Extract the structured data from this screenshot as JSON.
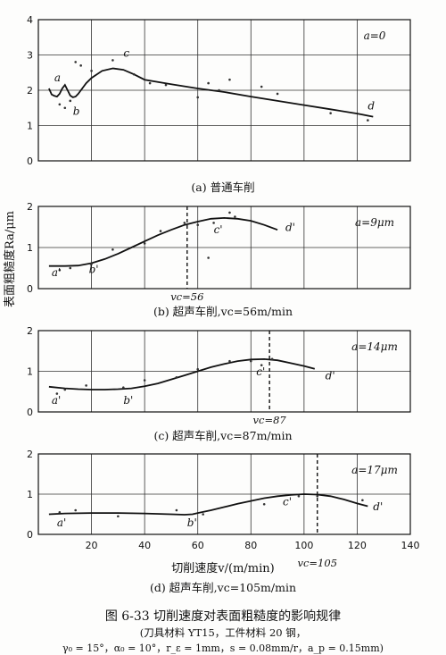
{
  "figure": {
    "caption": "图 6-33  切削速度对表面粗糙度的影响规律",
    "note": "(刀具材料 YT15，工件材料 20 钢，",
    "params": "γ₀ = 15°，α₀ = 10°，r_ε = 1mm，s = 0.08mm/r，a_p = 0.15mm)",
    "ylabel": "表面粗糙度Ra/μm",
    "xlabel": "切削速度v/(m/min)"
  },
  "chart_data": [
    {
      "type": "line",
      "title": "(a) 普通车削",
      "amplitude_label": "a=0",
      "ylim": [
        0,
        4
      ],
      "yticks": [
        "0",
        "1",
        "2",
        "3",
        "4"
      ],
      "xlim": [
        0,
        140
      ],
      "grid": true,
      "series": [
        {
          "x": [
            4,
            5,
            6,
            7,
            8,
            9,
            10,
            11,
            12,
            13,
            14,
            15,
            16,
            18,
            20,
            24,
            28,
            32,
            36,
            40,
            50,
            60,
            70,
            80,
            90,
            100,
            110,
            120,
            126
          ],
          "y": [
            2.05,
            1.88,
            1.84,
            1.82,
            1.9,
            2.05,
            2.15,
            2.0,
            1.85,
            1.8,
            1.82,
            1.9,
            2.0,
            2.2,
            2.35,
            2.55,
            2.62,
            2.58,
            2.45,
            2.3,
            2.17,
            2.05,
            1.95,
            1.82,
            1.7,
            1.58,
            1.46,
            1.34,
            1.25
          ]
        }
      ],
      "points": [
        {
          "x": 8,
          "y": 1.6
        },
        {
          "x": 10,
          "y": 1.5
        },
        {
          "x": 12,
          "y": 1.7
        },
        {
          "x": 14,
          "y": 2.8
        },
        {
          "x": 16,
          "y": 2.7
        },
        {
          "x": 20,
          "y": 2.55
        },
        {
          "x": 28,
          "y": 2.85
        },
        {
          "x": 36,
          "y": 2.45
        },
        {
          "x": 42,
          "y": 2.2
        },
        {
          "x": 48,
          "y": 2.15
        },
        {
          "x": 60,
          "y": 1.8
        },
        {
          "x": 64,
          "y": 2.2
        },
        {
          "x": 68,
          "y": 2.0
        },
        {
          "x": 72,
          "y": 2.3
        },
        {
          "x": 84,
          "y": 2.1
        },
        {
          "x": 90,
          "y": 1.9
        },
        {
          "x": 110,
          "y": 1.35
        },
        {
          "x": 124,
          "y": 1.15
        }
      ],
      "curve_labels": [
        {
          "text": "a",
          "x": 6,
          "y": 2.25
        },
        {
          "text": "b",
          "x": 13,
          "y": 1.3
        },
        {
          "text": "c",
          "x": 32,
          "y": 2.95
        },
        {
          "text": "d",
          "x": 124,
          "y": 1.45
        }
      ]
    },
    {
      "type": "line",
      "title": "(b) 超声车削,vc=56m/min",
      "amplitude_label": "a=9μm",
      "vc_label": "vc=56",
      "vc": 56,
      "ylim": [
        0,
        2
      ],
      "yticks": [
        "0",
        "1",
        "2"
      ],
      "xlim": [
        0,
        140
      ],
      "grid": true,
      "series": [
        {
          "x": [
            4,
            10,
            15,
            20,
            25,
            30,
            35,
            40,
            45,
            50,
            55,
            60,
            65,
            70,
            75,
            80,
            85,
            90
          ],
          "y": [
            0.55,
            0.55,
            0.56,
            0.62,
            0.72,
            0.85,
            1.0,
            1.15,
            1.3,
            1.43,
            1.55,
            1.63,
            1.7,
            1.72,
            1.7,
            1.65,
            1.55,
            1.43
          ]
        }
      ],
      "points": [
        {
          "x": 8,
          "y": 0.45
        },
        {
          "x": 12,
          "y": 0.5
        },
        {
          "x": 20,
          "y": 0.6
        },
        {
          "x": 28,
          "y": 0.95
        },
        {
          "x": 40,
          "y": 1.1
        },
        {
          "x": 46,
          "y": 1.4
        },
        {
          "x": 55,
          "y": 1.6
        },
        {
          "x": 60,
          "y": 1.55
        },
        {
          "x": 64,
          "y": 0.75
        },
        {
          "x": 66,
          "y": 1.6
        },
        {
          "x": 72,
          "y": 1.85
        },
        {
          "x": 74,
          "y": 1.75
        }
      ],
      "curve_labels": [
        {
          "text": "a'",
          "x": 5,
          "y": 0.3
        },
        {
          "text": "b'",
          "x": 19,
          "y": 0.38
        },
        {
          "text": "c'",
          "x": 66,
          "y": 1.35
        },
        {
          "text": "d'",
          "x": 93,
          "y": 1.4
        }
      ]
    },
    {
      "type": "line",
      "title": "(c) 超声车削,vc=87m/min",
      "amplitude_label": "a=14μm",
      "vc_label": "vc=87",
      "vc": 87,
      "ylim": [
        0,
        2
      ],
      "yticks": [
        "0",
        "1",
        "2"
      ],
      "xlim": [
        0,
        140
      ],
      "grid": true,
      "series": [
        {
          "x": [
            4,
            10,
            15,
            20,
            25,
            30,
            35,
            40,
            45,
            50,
            55,
            60,
            65,
            70,
            75,
            80,
            85,
            90,
            95,
            100,
            104
          ],
          "y": [
            0.62,
            0.58,
            0.56,
            0.55,
            0.55,
            0.56,
            0.58,
            0.63,
            0.7,
            0.8,
            0.9,
            1.0,
            1.1,
            1.18,
            1.25,
            1.29,
            1.3,
            1.27,
            1.2,
            1.13,
            1.06
          ]
        }
      ],
      "points": [
        {
          "x": 7,
          "y": 0.45
        },
        {
          "x": 10,
          "y": 0.55
        },
        {
          "x": 18,
          "y": 0.65
        },
        {
          "x": 32,
          "y": 0.6
        },
        {
          "x": 40,
          "y": 0.78
        },
        {
          "x": 52,
          "y": 0.85
        },
        {
          "x": 60,
          "y": 1.05
        },
        {
          "x": 72,
          "y": 1.25
        },
        {
          "x": 80,
          "y": 1.25
        },
        {
          "x": 84,
          "y": 1.15
        },
        {
          "x": 88,
          "y": 1.3
        }
      ],
      "curve_labels": [
        {
          "text": "a'",
          "x": 5,
          "y": 0.2
        },
        {
          "text": "b'",
          "x": 32,
          "y": 0.2
        },
        {
          "text": "c'",
          "x": 82,
          "y": 0.9
        },
        {
          "text": "d'",
          "x": 108,
          "y": 0.8
        }
      ]
    },
    {
      "type": "line",
      "title": "(d) 超声车削,vc=105m/min",
      "amplitude_label": "a=17μm",
      "vc_label": "vc=105",
      "vc": 105,
      "ylim": [
        0,
        2
      ],
      "yticks": [
        "0",
        "1",
        "2"
      ],
      "xlim": [
        0,
        140
      ],
      "xticks": [
        "20",
        "40",
        "60",
        "80",
        "100",
        "120",
        "140"
      ],
      "grid": true,
      "series": [
        {
          "x": [
            4,
            10,
            20,
            30,
            40,
            50,
            55,
            58,
            60,
            65,
            70,
            75,
            80,
            85,
            90,
            95,
            100,
            105,
            110,
            115,
            120,
            124
          ],
          "y": [
            0.5,
            0.52,
            0.53,
            0.53,
            0.52,
            0.5,
            0.49,
            0.5,
            0.53,
            0.6,
            0.68,
            0.76,
            0.83,
            0.9,
            0.95,
            0.98,
            1.0,
            0.99,
            0.95,
            0.87,
            0.77,
            0.7
          ]
        }
      ],
      "points": [
        {
          "x": 8,
          "y": 0.55
        },
        {
          "x": 14,
          "y": 0.6
        },
        {
          "x": 30,
          "y": 0.45
        },
        {
          "x": 52,
          "y": 0.6
        },
        {
          "x": 62,
          "y": 0.5
        },
        {
          "x": 85,
          "y": 0.75
        },
        {
          "x": 98,
          "y": 0.95
        },
        {
          "x": 105,
          "y": 0.95
        },
        {
          "x": 122,
          "y": 0.85
        }
      ],
      "curve_labels": [
        {
          "text": "a'",
          "x": 7,
          "y": 0.2
        },
        {
          "text": "b'",
          "x": 56,
          "y": 0.2
        },
        {
          "text": "c'",
          "x": 92,
          "y": 0.72
        },
        {
          "text": "d'",
          "x": 126,
          "y": 0.6
        }
      ]
    }
  ]
}
